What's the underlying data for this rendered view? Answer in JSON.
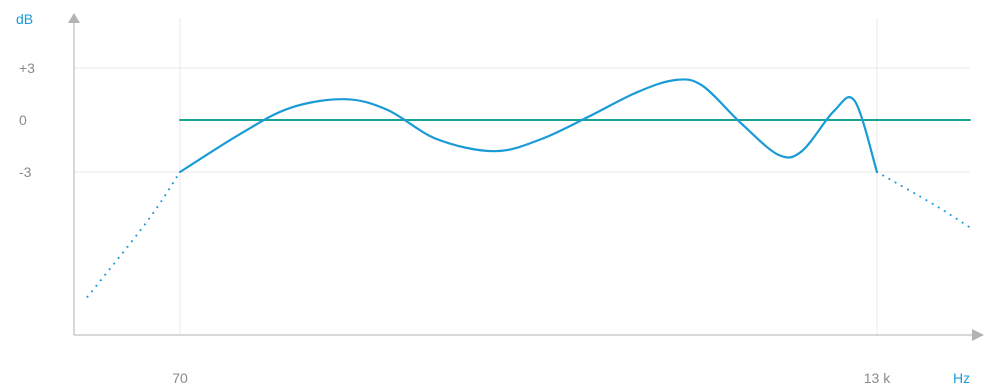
{
  "chart_data": {
    "type": "line",
    "title": "",
    "xlabel": "Hz",
    "ylabel": "dB",
    "x_scale": "log",
    "grid": true,
    "x_ticks": [
      {
        "value": 70,
        "label": "70"
      },
      {
        "value": 13000,
        "label": "13 k"
      }
    ],
    "y_ticks": [
      {
        "value": 3,
        "label": "+3"
      },
      {
        "value": 0,
        "label": "0"
      },
      {
        "value": -3,
        "label": "-3"
      }
    ],
    "passband": {
      "low_hz": 70,
      "high_hz": 13000,
      "level_db": -3
    },
    "series": [
      {
        "style": "flat-reference",
        "color": "#1aa394",
        "points": [
          [
            70,
            0
          ],
          [
            30000,
            0
          ]
        ]
      },
      {
        "style": "solid",
        "color": "#1a9bd7",
        "points": [
          [
            70,
            -3.0
          ],
          [
            110,
            -0.8
          ],
          [
            160,
            0.7
          ],
          [
            240,
            1.2
          ],
          [
            330,
            0.6
          ],
          [
            480,
            -1.1
          ],
          [
            740,
            -1.8
          ],
          [
            1050,
            -1.1
          ],
          [
            1500,
            0.2
          ],
          [
            2150,
            1.6
          ],
          [
            2850,
            2.3
          ],
          [
            3500,
            2.0
          ],
          [
            4700,
            -0.2
          ],
          [
            6200,
            -2.0
          ],
          [
            7400,
            -1.8
          ],
          [
            9400,
            0.5
          ],
          [
            11000,
            1.1
          ],
          [
            13000,
            -3.0
          ]
        ]
      },
      {
        "style": "dotted",
        "color": "#1a9bd7",
        "points": [
          [
            35,
            -10.2
          ],
          [
            55,
            -5.8
          ],
          [
            70,
            -3.0
          ]
        ]
      },
      {
        "style": "dotted",
        "color": "#1a9bd7",
        "points": [
          [
            13000,
            -3.0
          ],
          [
            20000,
            -4.9
          ],
          [
            30000,
            -6.2
          ]
        ]
      }
    ]
  },
  "colors": {
    "axis": "#b3b3b3",
    "grid": "#e8e8e8",
    "unit_label": "#1a9bd7",
    "tick_label": "#8a8a8a"
  }
}
